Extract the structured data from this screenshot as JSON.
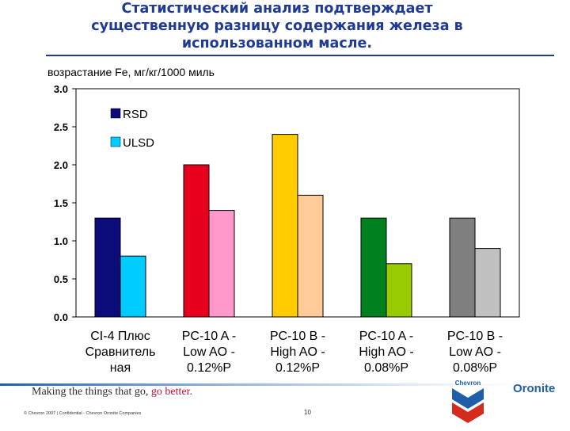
{
  "title_lines": [
    "Статистический анализ подтверждает",
    "существенную разницу содержания железа в",
    "использованном масле."
  ],
  "chart_data": {
    "type": "bar",
    "ylabel": "возрастание Fe, мг/кг/1000 миль",
    "ylim": [
      0,
      3.0
    ],
    "yticks": [
      0.0,
      0.5,
      1.0,
      1.5,
      2.0,
      2.5,
      3.0
    ],
    "ytick_labels": [
      "0.0",
      "0.5",
      "1.0",
      "1.5",
      "2.0",
      "2.5",
      "3.0"
    ],
    "categories": [
      [
        "CI-4 Плюс",
        "Сравнитель",
        "ная"
      ],
      [
        "PC-10 A -",
        "Low AO -",
        "0.12%P"
      ],
      [
        "PC-10 B -",
        "High AO -",
        "0.12%P"
      ],
      [
        "PC-10 A -",
        "High AO -",
        "0.08%P"
      ],
      [
        "PC-10 B -",
        "Low AO -",
        "0.08%P"
      ]
    ],
    "series": [
      {
        "name": "RSD",
        "values": [
          1.3,
          2.0,
          2.4,
          1.3,
          1.3
        ],
        "colors": [
          "#0B0B7A",
          "#E6001E",
          "#FFCC00",
          "#00801E",
          "#7F7F7F"
        ]
      },
      {
        "name": "ULSD",
        "values": [
          0.8,
          1.4,
          1.6,
          0.7,
          0.9
        ],
        "colors": [
          "#00CCFF",
          "#FF99CC",
          "#FFCC99",
          "#99CC00",
          "#C0C0C0"
        ]
      }
    ],
    "legend": {
      "placement": "top-left",
      "colors": [
        "#0B0B7A",
        "#00CCFF"
      ]
    },
    "grid": false
  },
  "footer": {
    "slogan_prefix": "Making the things that go, ",
    "slogan_accent": "go better.",
    "copyright": "© Chevron 2007  |  Confidential - Chevron Oronite Companies",
    "page_number": "10",
    "logo_text": "Chevron",
    "brand": "Oronite"
  }
}
